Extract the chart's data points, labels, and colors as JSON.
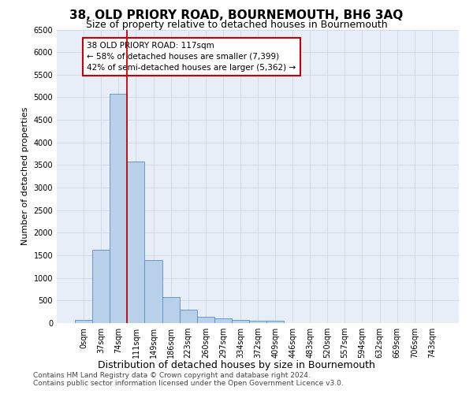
{
  "title": "38, OLD PRIORY ROAD, BOURNEMOUTH, BH6 3AQ",
  "subtitle": "Size of property relative to detached houses in Bournemouth",
  "xlabel": "Distribution of detached houses by size in Bournemouth",
  "ylabel": "Number of detached properties",
  "footer_line1": "Contains HM Land Registry data © Crown copyright and database right 2024.",
  "footer_line2": "Contains public sector information licensed under the Open Government Licence v3.0.",
  "bar_labels": [
    "0sqm",
    "37sqm",
    "74sqm",
    "111sqm",
    "149sqm",
    "186sqm",
    "223sqm",
    "260sqm",
    "297sqm",
    "334sqm",
    "372sqm",
    "409sqm",
    "446sqm",
    "483sqm",
    "520sqm",
    "557sqm",
    "594sqm",
    "632sqm",
    "669sqm",
    "706sqm",
    "743sqm"
  ],
  "bar_values": [
    75,
    1620,
    5080,
    3570,
    1400,
    580,
    290,
    140,
    100,
    75,
    55,
    45,
    0,
    0,
    0,
    0,
    0,
    0,
    0,
    0,
    0
  ],
  "bar_color": "#b8d0ea",
  "bar_edge_color": "#5a8fc0",
  "ylim": [
    0,
    6500
  ],
  "yticks": [
    0,
    500,
    1000,
    1500,
    2000,
    2500,
    3000,
    3500,
    4000,
    4500,
    5000,
    5500,
    6000,
    6500
  ],
  "vline_color": "#cc0000",
  "annotation_line1": "38 OLD PRIORY ROAD: 117sqm",
  "annotation_line2": "← 58% of detached houses are smaller (7,399)",
  "annotation_line3": "42% of semi-detached houses are larger (5,362) →",
  "annotation_box_color": "#cc0000",
  "grid_color": "#d0d8e8",
  "bg_color": "#e8eef8",
  "title_fontsize": 11,
  "subtitle_fontsize": 9,
  "xlabel_fontsize": 9,
  "ylabel_fontsize": 8,
  "tick_fontsize": 7,
  "annot_fontsize": 7.5,
  "footer_fontsize": 6.5
}
